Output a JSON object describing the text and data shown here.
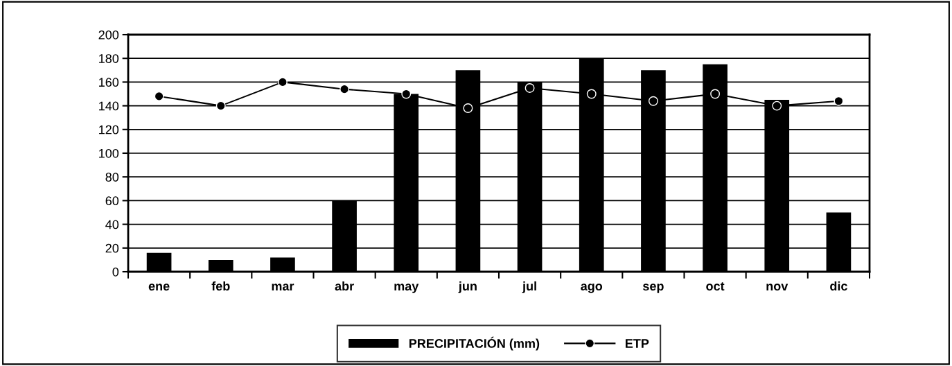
{
  "chart_data": {
    "type": "bar",
    "categories": [
      "ene",
      "feb",
      "mar",
      "abr",
      "may",
      "jun",
      "jul",
      "ago",
      "sep",
      "oct",
      "nov",
      "dic"
    ],
    "series": [
      {
        "name": "PRECIPITACIÓN (mm)",
        "color": "#000000",
        "values": [
          16,
          10,
          12,
          60,
          150,
          170,
          160,
          180,
          170,
          175,
          145,
          50
        ]
      },
      {
        "name": "ETP",
        "type": "line",
        "color": "#000000",
        "marker": "circle",
        "values": [
          148,
          140,
          160,
          154,
          150,
          138,
          155,
          150,
          144,
          150,
          140,
          144
        ]
      }
    ],
    "ylim": [
      0,
      200
    ],
    "yticks": [
      0,
      20,
      40,
      60,
      80,
      100,
      120,
      140,
      160,
      180,
      200
    ],
    "grid": "y",
    "legend": "bottom"
  }
}
